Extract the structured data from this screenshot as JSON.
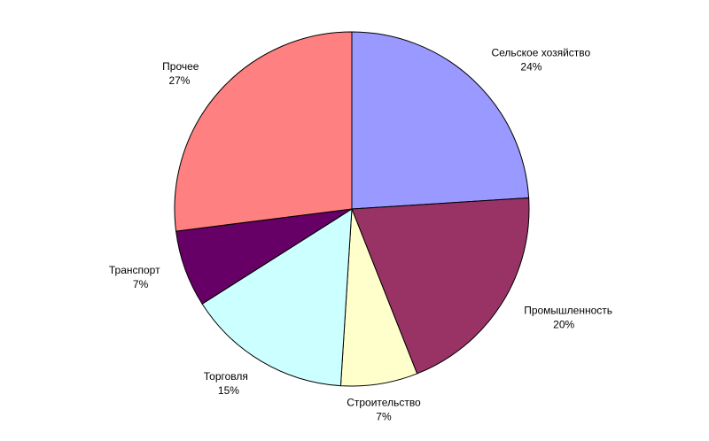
{
  "chart_data": {
    "type": "pie",
    "categories": [
      "Сельское хозяйство",
      "Промышленность",
      "Строительство",
      "Торговля",
      "Транспорт",
      "Прочее"
    ],
    "values": [
      24,
      20,
      7,
      15,
      7,
      27
    ],
    "value_labels": [
      "24%",
      "20%",
      "7%",
      "15%",
      "7%",
      "27%"
    ],
    "colors": [
      "#9999ff",
      "#993366",
      "#ffffcc",
      "#ccffff",
      "#660066",
      "#ff8080"
    ]
  }
}
